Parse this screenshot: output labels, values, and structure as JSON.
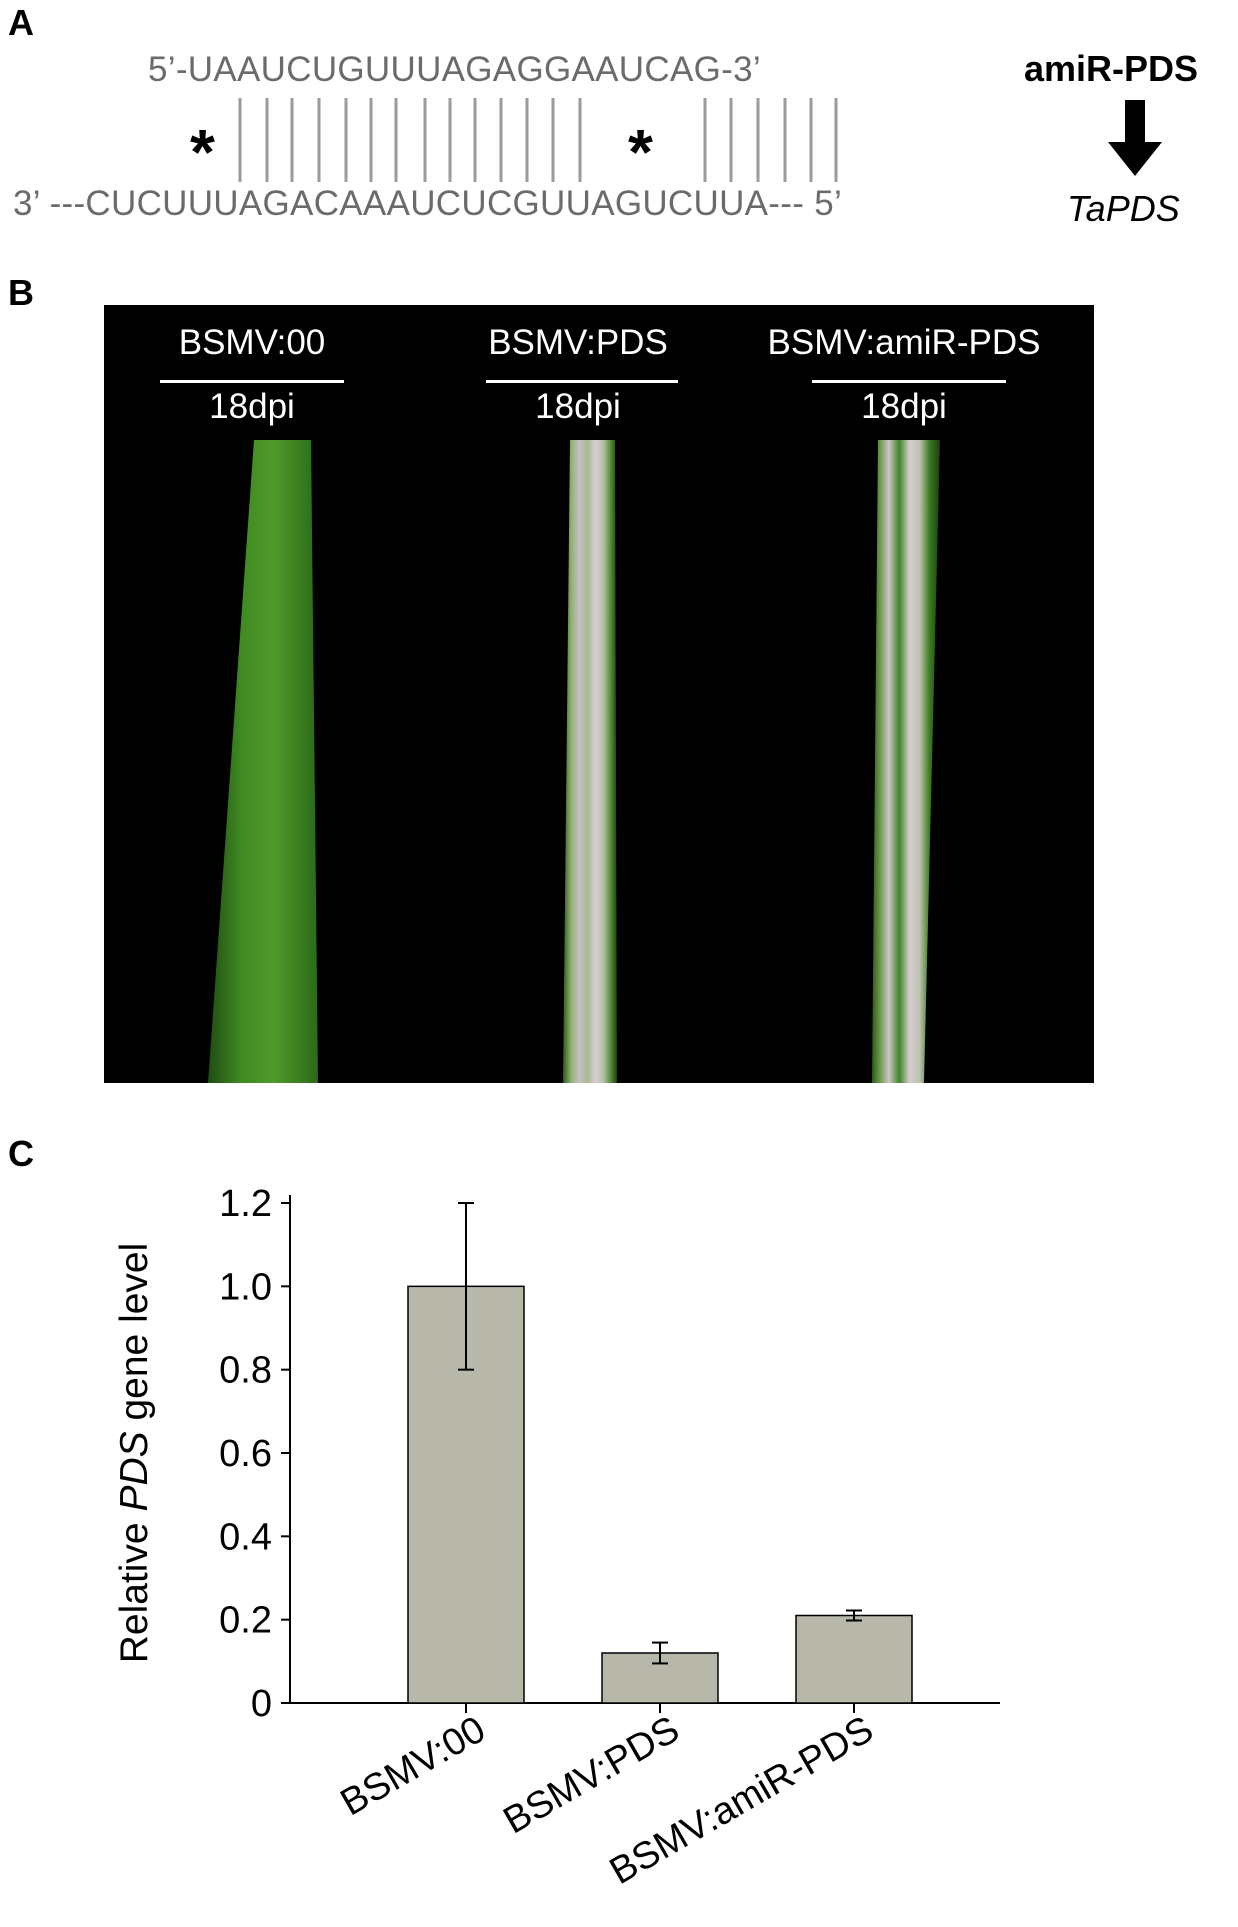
{
  "panel_a": {
    "label": "A",
    "top_strand": "5’-UAAUCUGUUUAGAGGAAUCAG-3’",
    "bottom_strand": "3’ ---CUCUUUAGACAAAUCUCGUUAGUCUUA--- 5’",
    "mismatch_marks": [
      "*",
      "*"
    ],
    "right_top": "amiR-PDS",
    "right_bottom": "TaPDS"
  },
  "panel_b": {
    "label": "B",
    "lanes": [
      {
        "title": "BSMV:00",
        "time": "18dpi"
      },
      {
        "title": "BSMV:PDS",
        "time": "18dpi"
      },
      {
        "title": "BSMV:amiR-PDS",
        "time": "18dpi"
      }
    ]
  },
  "panel_c": {
    "label": "C"
  },
  "chart_data": {
    "type": "bar",
    "categories": [
      "BSMV:00",
      "BSMV:PDS",
      "BSMV:amiR-PDS"
    ],
    "values": [
      1.0,
      0.12,
      0.21
    ],
    "error": [
      0.2,
      0.025,
      0.012
    ],
    "ylabel_prefix": "Relative ",
    "ylabel_italic": "PDS",
    "ylabel_suffix": " gene level",
    "ylim": [
      0,
      1.2
    ],
    "yticks": [
      "0",
      "0.2",
      "0.4",
      "0.6",
      "0.8",
      "1.0",
      "1.2"
    ],
    "bar_color": "#b8b8aa",
    "grid": false
  }
}
